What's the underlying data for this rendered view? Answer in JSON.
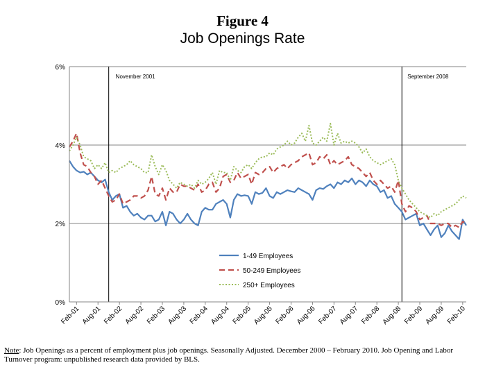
{
  "figure": {
    "label": "Figure 4",
    "title": "Job Openings Rate"
  },
  "note": {
    "prefix": "Note",
    "text": ":  Job Openings as a percent of employment plus job openings. Seasonally Adjusted. December 2000 – February 2010. Job Opening and Labor Turnover program: unpublished research data provided by BLS."
  },
  "chart_data": {
    "type": "line",
    "title": "Job Openings Rate",
    "xlabel": "",
    "ylabel": "",
    "ylim": [
      0,
      6
    ],
    "yticks": [
      "0%",
      "2%",
      "4%",
      "6%"
    ],
    "grid": true,
    "legend_position": "center-bottom",
    "x_tick_labels": [
      "Feb-01",
      "Aug-01",
      "Feb-02",
      "Aug-02",
      "Feb-03",
      "Aug-03",
      "Feb-04",
      "Aug-04",
      "Feb-05",
      "Aug-05",
      "Feb-06",
      "Aug-06",
      "Feb-07",
      "Aug-07",
      "Feb-08",
      "Aug-08",
      "Feb-09",
      "Aug-09",
      "Feb-10"
    ],
    "start_month": "Dec-00",
    "annotations": [
      {
        "month_index": 11,
        "label": "November 2001"
      },
      {
        "month_index": 93,
        "label": "September 2008"
      }
    ],
    "series": [
      {
        "name": "1-49 Employees",
        "color": "#4f81bd",
        "style": "solid",
        "values": [
          3.6,
          3.45,
          3.35,
          3.3,
          3.32,
          3.25,
          3.3,
          3.2,
          3.1,
          3.05,
          3.12,
          2.8,
          2.6,
          2.7,
          2.75,
          2.4,
          2.45,
          2.3,
          2.2,
          2.25,
          2.15,
          2.1,
          2.2,
          2.2,
          2.05,
          2.1,
          2.3,
          1.95,
          2.3,
          2.25,
          2.1,
          2.0,
          2.1,
          2.25,
          2.1,
          2.0,
          1.95,
          2.3,
          2.4,
          2.35,
          2.35,
          2.5,
          2.55,
          2.6,
          2.5,
          2.15,
          2.6,
          2.75,
          2.7,
          2.72,
          2.7,
          2.5,
          2.8,
          2.75,
          2.78,
          2.9,
          2.7,
          2.65,
          2.8,
          2.75,
          2.8,
          2.85,
          2.82,
          2.8,
          2.9,
          2.85,
          2.8,
          2.75,
          2.6,
          2.85,
          2.9,
          2.88,
          2.95,
          3.0,
          2.9,
          3.05,
          3.0,
          3.1,
          3.05,
          3.15,
          3.0,
          3.1,
          3.05,
          2.95,
          3.1,
          3.0,
          2.95,
          2.8,
          2.85,
          2.65,
          2.7,
          2.5,
          2.4,
          2.3,
          2.1,
          2.15,
          2.2,
          2.25,
          1.95,
          2.0,
          1.85,
          1.7,
          1.85,
          1.95,
          1.65,
          1.75,
          1.95,
          1.8,
          1.7,
          1.6,
          2.1,
          1.95
        ]
      },
      {
        "name": "50-249 Employees",
        "color": "#c0504d",
        "style": "dashed",
        "values": [
          3.95,
          4.1,
          4.3,
          3.8,
          3.5,
          3.45,
          3.3,
          3.2,
          3.0,
          3.1,
          2.9,
          2.7,
          2.55,
          2.6,
          2.75,
          2.5,
          2.55,
          2.6,
          2.7,
          2.7,
          2.65,
          2.7,
          2.85,
          3.2,
          2.75,
          2.7,
          2.9,
          2.6,
          2.9,
          2.8,
          2.8,
          3.0,
          2.95,
          2.95,
          2.9,
          2.85,
          3.0,
          2.8,
          2.85,
          3.0,
          3.05,
          2.8,
          2.9,
          3.2,
          3.25,
          3.05,
          3.1,
          3.3,
          3.15,
          3.2,
          3.25,
          3.0,
          3.3,
          3.25,
          3.3,
          3.4,
          3.45,
          3.3,
          3.4,
          3.45,
          3.5,
          3.4,
          3.5,
          3.55,
          3.6,
          3.7,
          3.75,
          3.8,
          3.5,
          3.55,
          3.7,
          3.65,
          3.75,
          3.5,
          3.6,
          3.5,
          3.55,
          3.6,
          3.7,
          3.5,
          3.45,
          3.4,
          3.3,
          3.2,
          3.3,
          3.1,
          3.0,
          3.1,
          3.0,
          2.9,
          2.95,
          2.8,
          3.1,
          2.5,
          2.3,
          2.45,
          2.4,
          2.3,
          2.1,
          2.15,
          2.2,
          2.0,
          2.0,
          2.0,
          1.95,
          2.0,
          2.0,
          1.9,
          1.95,
          1.9,
          2.05,
          2.0
        ]
      },
      {
        "name": "250+ Employees",
        "color": "#9bbb59",
        "style": "dotted",
        "values": [
          3.85,
          4.0,
          4.2,
          4.0,
          3.7,
          3.65,
          3.6,
          3.4,
          3.5,
          3.4,
          3.55,
          3.3,
          3.35,
          3.3,
          3.4,
          3.45,
          3.5,
          3.6,
          3.5,
          3.45,
          3.4,
          3.3,
          3.3,
          3.75,
          3.45,
          3.25,
          3.5,
          3.35,
          3.1,
          3.0,
          2.9,
          3.05,
          3.0,
          2.95,
          3.0,
          2.9,
          3.1,
          3.0,
          3.05,
          3.15,
          3.3,
          3.0,
          3.35,
          3.3,
          3.3,
          3.1,
          3.45,
          3.35,
          3.3,
          3.45,
          3.5,
          3.4,
          3.55,
          3.65,
          3.7,
          3.7,
          3.8,
          3.75,
          3.9,
          3.95,
          4.0,
          4.1,
          4.0,
          4.05,
          4.2,
          4.3,
          4.1,
          4.5,
          4.05,
          4.0,
          4.1,
          4.2,
          4.1,
          4.55,
          4.0,
          4.3,
          4.05,
          4.1,
          4.05,
          4.1,
          4.05,
          3.95,
          3.8,
          3.9,
          3.7,
          3.6,
          3.55,
          3.5,
          3.55,
          3.6,
          3.65,
          3.5,
          3.1,
          2.9,
          2.75,
          2.6,
          2.5,
          2.4,
          2.3,
          2.25,
          2.2,
          2.15,
          2.25,
          2.2,
          2.3,
          2.35,
          2.4,
          2.45,
          2.5,
          2.6,
          2.7,
          2.65
        ]
      }
    ]
  }
}
